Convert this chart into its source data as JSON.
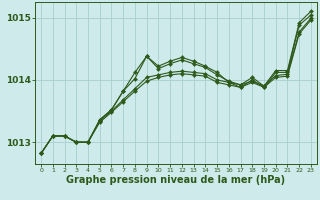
{
  "bg_color": "#ceeaea",
  "grid_color": "#a8cece",
  "line_color": "#2d5a1b",
  "xlabel": "Graphe pression niveau de la mer (hPa)",
  "xlim": [
    -0.5,
    23.5
  ],
  "ylim": [
    1012.65,
    1015.25
  ],
  "yticks": [
    1013,
    1014,
    1015
  ],
  "xticks": [
    0,
    1,
    2,
    3,
    4,
    5,
    6,
    7,
    8,
    9,
    10,
    11,
    12,
    13,
    14,
    15,
    16,
    17,
    18,
    19,
    20,
    21,
    22,
    23
  ],
  "series": [
    [
      1012.82,
      1013.1,
      1013.1,
      1013.0,
      1013.0,
      1013.32,
      1013.48,
      1013.65,
      1013.82,
      1013.98,
      1014.04,
      1014.08,
      1014.1,
      1014.08,
      1014.06,
      1013.96,
      1013.92,
      1013.88,
      1013.96,
      1013.88,
      1014.04,
      1014.06,
      1014.74,
      1014.96
    ],
    [
      1012.82,
      1013.1,
      1013.1,
      1013.0,
      1013.0,
      1013.34,
      1013.5,
      1013.68,
      1013.86,
      1014.04,
      1014.08,
      1014.12,
      1014.14,
      1014.12,
      1014.1,
      1014.0,
      1013.96,
      1013.92,
      1013.98,
      1013.9,
      1014.07,
      1014.09,
      1014.77,
      1014.99
    ],
    [
      1012.82,
      1013.1,
      1013.1,
      1013.0,
      1013.0,
      1013.36,
      1013.52,
      1013.82,
      1014.12,
      1014.38,
      1014.22,
      1014.3,
      1014.36,
      1014.3,
      1014.22,
      1014.12,
      1013.96,
      1013.88,
      1014.0,
      1013.88,
      1014.12,
      1014.12,
      1014.88,
      1015.04
    ],
    [
      1012.82,
      1013.1,
      1013.1,
      1013.0,
      1013.0,
      1013.36,
      1013.52,
      1013.82,
      1014.02,
      1014.38,
      1014.18,
      1014.26,
      1014.32,
      1014.26,
      1014.2,
      1014.08,
      1013.98,
      1013.92,
      1014.04,
      1013.9,
      1014.15,
      1014.15,
      1014.92,
      1015.1
    ]
  ]
}
